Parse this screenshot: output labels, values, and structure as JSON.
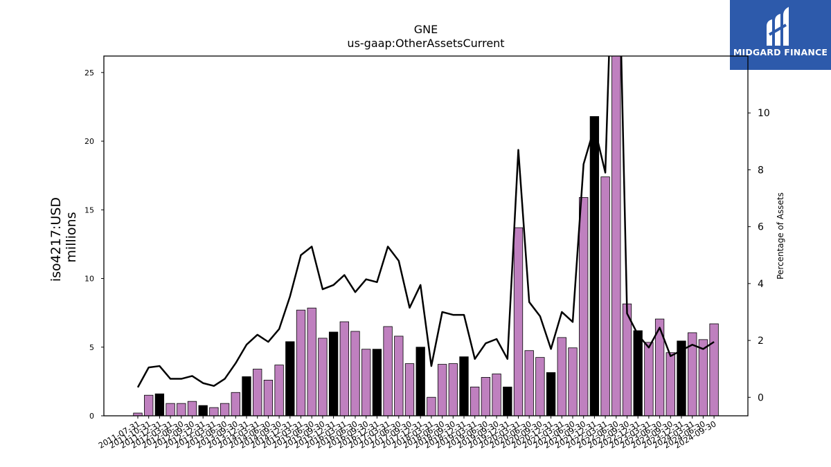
{
  "brand": {
    "name": "MIDGARD FINANCE",
    "bg_color": "#2d5aab"
  },
  "chart_data": {
    "type": "bar+line",
    "title": "GNE",
    "subtitle": "us-gaap:OtherAssetsCurrent",
    "ylabel_left": "iso4217:USD\nmillions",
    "ylabel_right": "Percentage of Assets",
    "ylim_left": [
      0,
      26.2
    ],
    "yticks_left": [
      0,
      5,
      10,
      15,
      20,
      25
    ],
    "ylim_right": [
      -0.65,
      12.0
    ],
    "yticks_right": [
      0,
      2,
      4,
      6,
      8,
      10
    ],
    "bar_colors": {
      "quarter": "#bf80bf",
      "annual": "#000000"
    },
    "line_color": "#000000",
    "categories": [
      "2011-07-31",
      "2011-10-31",
      "2011-12-31",
      "2012-03-31",
      "2012-06-30",
      "2012-09-30",
      "2012-12-31",
      "2013-03-31",
      "2013-06-30",
      "2013-09-30",
      "2013-12-31",
      "2014-03-31",
      "2014-06-30",
      "2014-09-30",
      "2014-12-31",
      "2015-03-31",
      "2015-06-30",
      "2015-09-30",
      "2015-12-31",
      "2016-03-31",
      "2016-06-30",
      "2016-09-30",
      "2016-12-31",
      "2017-03-31",
      "2017-06-30",
      "2017-09-30",
      "2017-12-31",
      "2018-03-31",
      "2018-06-30",
      "2018-09-30",
      "2018-12-31",
      "2019-03-31",
      "2019-06-30",
      "2019-09-30",
      "2019-12-31",
      "2020-03-31",
      "2020-06-30",
      "2020-09-30",
      "2020-12-31",
      "2021-03-31",
      "2021-06-30",
      "2021-09-30",
      "2021-12-31",
      "2022-03-31",
      "2022-06-30",
      "2022-09-30",
      "2022-12-31",
      "2023-03-31",
      "2023-06-30",
      "2023-09-30",
      "2023-12-31",
      "2024-03-31",
      "2024-06-30",
      "2024-09-30"
    ],
    "values": [
      0.2,
      1.5,
      1.6,
      0.9,
      0.9,
      1.05,
      0.75,
      0.6,
      0.9,
      1.7,
      2.85,
      3.4,
      2.6,
      3.7,
      5.4,
      7.7,
      7.85,
      5.65,
      6.1,
      6.85,
      6.15,
      4.85,
      4.85,
      6.5,
      5.8,
      3.8,
      5.0,
      1.35,
      3.75,
      3.8,
      4.3,
      2.1,
      2.8,
      3.05,
      2.1,
      13.7,
      4.75,
      4.25,
      3.15,
      5.7,
      4.95,
      15.9,
      21.8,
      17.4,
      28.0,
      8.15,
      6.2,
      5.35,
      7.05,
      4.6,
      5.45,
      6.05,
      5.55,
      6.7
    ],
    "annual": [
      false,
      false,
      true,
      false,
      false,
      false,
      true,
      false,
      false,
      false,
      true,
      false,
      false,
      false,
      true,
      false,
      false,
      false,
      true,
      false,
      false,
      false,
      true,
      false,
      false,
      false,
      true,
      false,
      false,
      false,
      true,
      false,
      false,
      false,
      true,
      false,
      false,
      false,
      true,
      false,
      false,
      false,
      true,
      false,
      false,
      false,
      true,
      false,
      false,
      false,
      true,
      false,
      false,
      false
    ],
    "pct_of_assets": [
      0.35,
      1.05,
      1.1,
      0.65,
      0.65,
      0.75,
      0.5,
      0.4,
      0.65,
      1.2,
      1.85,
      2.2,
      1.95,
      2.4,
      3.55,
      5.0,
      5.3,
      3.8,
      3.95,
      4.3,
      3.7,
      4.15,
      4.05,
      5.3,
      4.8,
      3.15,
      3.95,
      1.1,
      3.0,
      2.9,
      2.9,
      1.35,
      1.9,
      2.05,
      1.35,
      8.7,
      3.35,
      2.85,
      1.7,
      3.0,
      2.65,
      8.2,
      9.5,
      7.9,
      20.0,
      2.95,
      2.2,
      1.75,
      2.45,
      1.45,
      1.65,
      1.85,
      1.7,
      1.95
    ],
    "grid": false,
    "legend": "none"
  }
}
